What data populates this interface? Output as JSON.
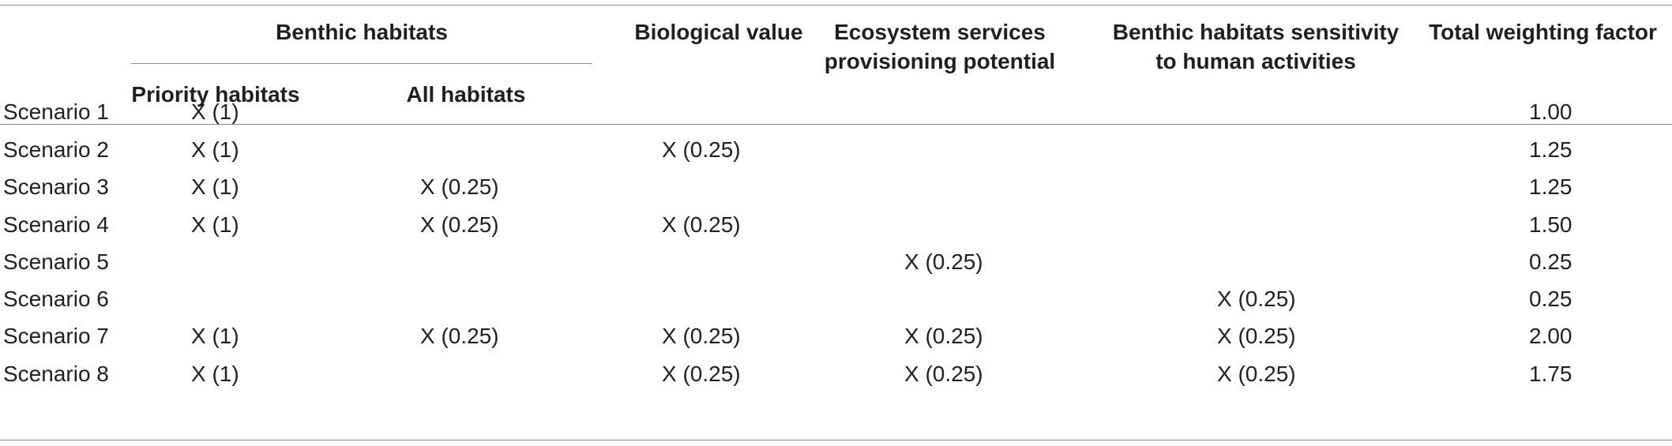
{
  "headers": {
    "benthic_habitats": "Benthic habitats",
    "priority_habitats": "Priority habitats",
    "all_habitats": "All habitats",
    "biological_value": "Biological value",
    "ecosystem_services_line1": "Ecosystem services",
    "ecosystem_services_line2": "provisioning potential",
    "sensitivity_line1": "Benthic habitats sensitivity",
    "sensitivity_line2": "to human activities",
    "total_weighting_factor": "Total weighting factor"
  },
  "rows": [
    {
      "label": "Scenario 1",
      "priority": "X (1)",
      "all": "",
      "bio": "",
      "eco": "",
      "sens": "",
      "total": "1.00"
    },
    {
      "label": "Scenario 2",
      "priority": "X (1)",
      "all": "",
      "bio": "X (0.25)",
      "eco": "",
      "sens": "",
      "total": "1.25"
    },
    {
      "label": "Scenario 3",
      "priority": "X (1)",
      "all": "X (0.25)",
      "bio": "",
      "eco": "",
      "sens": "",
      "total": "1.25"
    },
    {
      "label": "Scenario 4",
      "priority": "X (1)",
      "all": "X (0.25)",
      "bio": "X (0.25)",
      "eco": "",
      "sens": "",
      "total": "1.50"
    },
    {
      "label": "Scenario 5",
      "priority": "",
      "all": "",
      "bio": "",
      "eco": "X (0.25)",
      "sens": "",
      "total": "0.25"
    },
    {
      "label": "Scenario 6",
      "priority": "",
      "all": "",
      "bio": "",
      "eco": "",
      "sens": "X (0.25)",
      "total": "0.25"
    },
    {
      "label": "Scenario 7",
      "priority": "X (1)",
      "all": "X (0.25)",
      "bio": "X (0.25)",
      "eco": "X (0.25)",
      "sens": "X (0.25)",
      "total": "2.00"
    },
    {
      "label": "Scenario 8",
      "priority": "X (1)",
      "all": "",
      "bio": "X (0.25)",
      "eco": "X (0.25)",
      "sens": "X (0.25)",
      "total": "1.75"
    }
  ]
}
